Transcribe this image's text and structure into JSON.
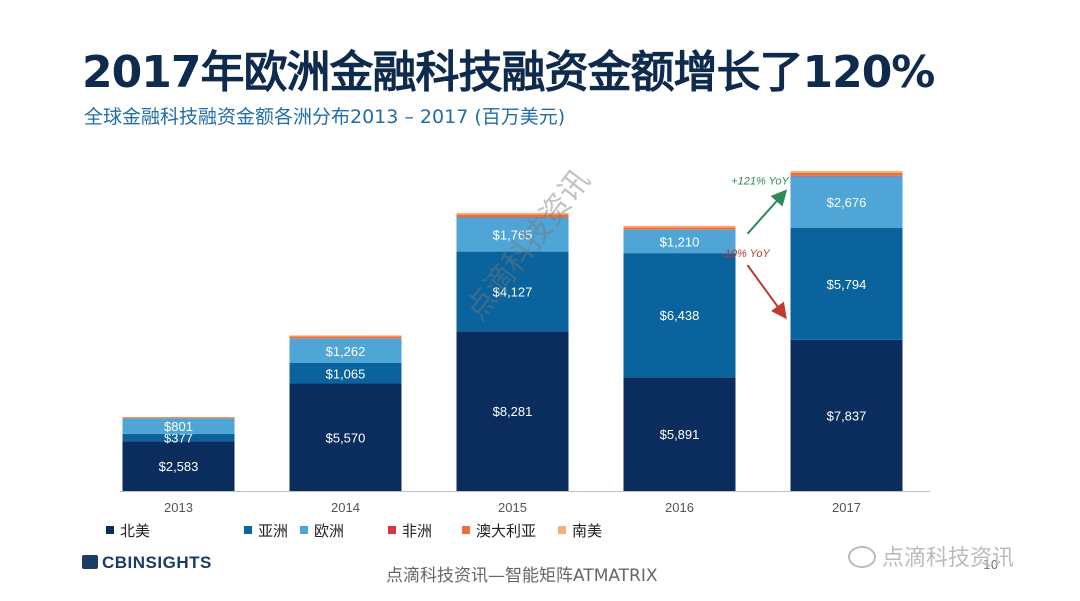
{
  "title": "2017年欧洲金融科技融资金额增长了120%",
  "subtitle": "全球金融科技融资金额各洲分布2013 – 2017 (百万美元)",
  "chart_data": {
    "type": "bar",
    "stacked": true,
    "categories": [
      "2013",
      "2014",
      "2015",
      "2016",
      "2017"
    ],
    "series": [
      {
        "name": "北美",
        "color": "#0b2d5e",
        "values": [
          2583,
          5570,
          8281,
          5891,
          7837
        ],
        "labels": [
          "$2,583",
          "$5,570",
          "$8,281",
          "$5,891",
          "$7,837"
        ]
      },
      {
        "name": "亚洲",
        "color": "#0a639c",
        "values": [
          377,
          1065,
          4127,
          6438,
          5794
        ],
        "labels": [
          "$377",
          "$1,065",
          "$4,127",
          "$6,438",
          "$5,794"
        ]
      },
      {
        "name": "欧洲",
        "color": "#4ea5d6",
        "values": [
          801,
          1262,
          1765,
          1210,
          2676
        ],
        "labels": [
          "$801",
          "$1,262",
          "$1,765",
          "$1,210",
          "$2,676"
        ]
      },
      {
        "name": "非洲",
        "color": "#d9334a",
        "values": [
          10,
          20,
          25,
          20,
          30
        ],
        "labels": [
          "",
          "",
          "",
          "",
          ""
        ]
      },
      {
        "name": "澳大利亚",
        "color": "#e8733a",
        "values": [
          40,
          90,
          130,
          110,
          150
        ],
        "labels": [
          "",
          "",
          "",
          "",
          ""
        ]
      },
      {
        "name": "南美",
        "color": "#f3b07a",
        "values": [
          25,
          60,
          90,
          80,
          100
        ],
        "labels": [
          "",
          "",
          "",
          "",
          ""
        ]
      }
    ],
    "ylim": [
      0,
      17000
    ],
    "annotations": [
      {
        "text": "+121% YoY",
        "color": "#2e8b57",
        "series": "欧洲",
        "from": "2016",
        "to": "2017",
        "direction": "up"
      },
      {
        "text": "-10% YoY",
        "color": "#c0392b",
        "series": "亚洲",
        "from": "2016",
        "to": "2017",
        "direction": "down"
      }
    ],
    "legend_position": "bottom"
  },
  "footer": {
    "logo": "CBINSIGHTS",
    "text": "点滴科技资讯—智能矩阵ATMATRIX",
    "page": "10"
  },
  "watermark": {
    "account": "点滴科技资讯",
    "diagonal": "点滴科技资讯"
  }
}
